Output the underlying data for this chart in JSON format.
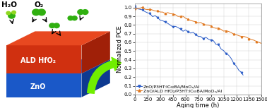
{
  "xlabel": "Aging time (h)",
  "ylabel": "Normalized PCE",
  "xlim": [
    0,
    1500
  ],
  "ylim": [
    0.0,
    1.05
  ],
  "xticks": [
    0,
    150,
    300,
    450,
    600,
    750,
    900,
    1050,
    1200,
    1350,
    1500
  ],
  "yticks": [
    0.0,
    0.1,
    0.2,
    0.3,
    0.4,
    0.5,
    0.6,
    0.7,
    0.8,
    0.9,
    1.0
  ],
  "blue_label": "ZnO/P3HT:IC₆₀BA/MoOₓ/Al",
  "orange_label": "ZnO/ALD HfO₂/P3HT:IC₆₀BA/MoOₓ/Al",
  "blue_color": "#3060c8",
  "orange_color": "#e07820",
  "axis_label_fontsize": 6.0,
  "tick_fontsize": 5.0,
  "legend_fontsize": 4.5,
  "zno_front": "#1a58c8",
  "zno_top": "#3a78e8",
  "zno_right": "#0e3a90",
  "hfo_front": "#d03010",
  "hfo_top": "#e84820",
  "hfo_right": "#a02008",
  "green_dark": "#30b010",
  "green_light": "#90d820",
  "green_arrow": "#70ee00",
  "text_white": "#ffffff",
  "text_black": "#000000",
  "label_fontsize": 7.5,
  "layer_label_fontsize": 7.0
}
